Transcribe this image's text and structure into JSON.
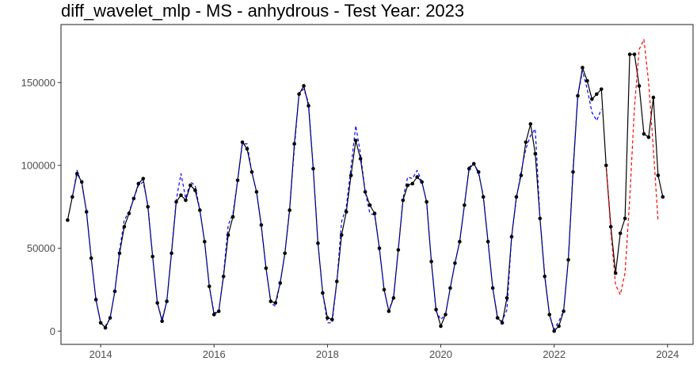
{
  "chart_data": {
    "type": "line",
    "title": "diff_wavelet_mlp - MS - anhydrous - Test Year: 2023",
    "xlabel": "",
    "ylabel": "",
    "xlim": [
      2013.3,
      2024.45
    ],
    "ylim": [
      -8000,
      185000
    ],
    "x_ticks": [
      2014,
      2016,
      2018,
      2020,
      2022,
      2024
    ],
    "x_tick_labels": [
      "2014",
      "2016",
      "2018",
      "2020",
      "2022",
      "2024"
    ],
    "y_ticks": [
      0,
      50000,
      100000,
      150000
    ],
    "y_tick_labels": [
      "0",
      "50000",
      "100000",
      "150000"
    ],
    "grid": false,
    "legend": "none",
    "start": "2013-06",
    "series": [
      {
        "style": "solid-points",
        "color": "#000000",
        "values": [
          67000,
          81000,
          95000,
          90000,
          72000,
          44000,
          19000,
          5000,
          2000,
          8000,
          24000,
          47000,
          63000,
          71000,
          80000,
          89000,
          92000,
          75000,
          45000,
          17000,
          6000,
          18000,
          47000,
          78000,
          82000,
          79000,
          88000,
          85000,
          73000,
          54000,
          27000,
          10000,
          12000,
          33000,
          58000,
          69000,
          91000,
          114000,
          110000,
          96000,
          84000,
          64000,
          38000,
          18000,
          17000,
          29000,
          47000,
          73000,
          113000,
          143000,
          148000,
          136000,
          98000,
          53000,
          23000,
          8000,
          7000,
          30000,
          58000,
          72000,
          94000,
          115000,
          104000,
          84000,
          76000,
          71000,
          50000,
          25000,
          12000,
          20000,
          49000,
          79000,
          88000,
          89000,
          93000,
          90000,
          78000,
          42000,
          13000,
          3000,
          10000,
          26000,
          41000,
          54000,
          76000,
          98000,
          101000,
          96000,
          81000,
          54000,
          26000,
          8000,
          5000,
          20000,
          57000,
          81000,
          94000,
          114000,
          125000,
          107000,
          68000,
          33000,
          10000,
          0,
          3000,
          12000,
          43000,
          96000,
          142000,
          159000,
          151000,
          140000,
          143000,
          146000,
          100000,
          63000,
          35000,
          59000,
          68000,
          167000,
          167000,
          148000,
          119000,
          117000,
          141000,
          94000,
          81000
        ]
      },
      {
        "style": "dashed",
        "color": "#0000ff",
        "values": [
          null,
          80000,
          97000,
          89000,
          72000,
          44000,
          19000,
          5000,
          3000,
          8000,
          24000,
          49000,
          67000,
          72000,
          80000,
          88000,
          90000,
          76000,
          45000,
          17000,
          7000,
          18000,
          48000,
          79000,
          95000,
          80000,
          90000,
          88000,
          73000,
          54000,
          27000,
          11000,
          12000,
          34000,
          64000,
          71000,
          91000,
          113000,
          113000,
          96000,
          84000,
          63000,
          38000,
          17000,
          15000,
          29000,
          47000,
          74000,
          110000,
          144000,
          146000,
          138000,
          98000,
          53000,
          23000,
          5000,
          5000,
          30000,
          66000,
          75000,
          99000,
          124000,
          107000,
          84000,
          71000,
          70000,
          50000,
          25000,
          12000,
          21000,
          49000,
          80000,
          93000,
          92000,
          97000,
          90000,
          78000,
          42000,
          12000,
          7000,
          10000,
          26000,
          41000,
          54000,
          76000,
          99000,
          101000,
          95000,
          82000,
          54000,
          26000,
          9000,
          6000,
          13000,
          57000,
          80000,
          96000,
          110000,
          118000,
          122000,
          68000,
          34000,
          10000,
          1000,
          6000,
          12000,
          43000,
          98000,
          142000,
          157000,
          146000,
          132000,
          127000,
          134000,
          null
        ]
      },
      {
        "style": "dashed",
        "color": "#ff0000",
        "values": [
          null,
          null,
          null,
          null,
          null,
          null,
          null,
          null,
          null,
          null,
          null,
          null,
          null,
          null,
          null,
          null,
          null,
          null,
          null,
          null,
          null,
          null,
          null,
          null,
          null,
          null,
          null,
          null,
          null,
          null,
          null,
          null,
          null,
          null,
          null,
          null,
          null,
          null,
          null,
          null,
          null,
          null,
          null,
          null,
          null,
          null,
          null,
          null,
          null,
          null,
          null,
          null,
          null,
          null,
          null,
          null,
          null,
          null,
          null,
          null,
          null,
          null,
          null,
          null,
          null,
          null,
          null,
          null,
          null,
          null,
          null,
          null,
          null,
          null,
          null,
          null,
          null,
          null,
          null,
          null,
          null,
          null,
          null,
          null,
          null,
          null,
          null,
          null,
          null,
          null,
          null,
          null,
          null,
          null,
          null,
          null,
          null,
          null,
          null,
          null,
          null,
          null,
          null,
          null,
          null,
          null,
          null,
          null,
          null,
          null,
          null,
          null,
          null,
          null,
          100000,
          60000,
          28000,
          22000,
          35000,
          80000,
          135000,
          170000,
          176000,
          150000,
          110000,
          66000,
          null
        ]
      }
    ]
  }
}
